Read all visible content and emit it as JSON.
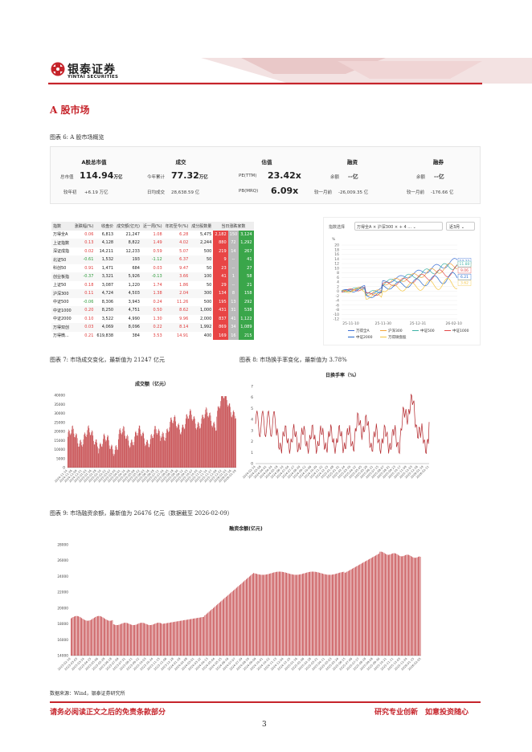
{
  "brand": {
    "cn": "银泰证券",
    "en": "YINTAI SECURITIES"
  },
  "section_title": "A 股市场",
  "fig6_caption": "图表 6: A 股市场概览",
  "overview": {
    "col1": {
      "title": "A股总市值",
      "l1": "总市值",
      "v1": "114.94",
      "u1": "万亿",
      "l2": "较年初",
      "v2": "+6.19 万亿"
    },
    "col2": {
      "title": "成交",
      "l1": "今年累计",
      "v1": "77.32",
      "u1": "万亿",
      "l2": "日均成交",
      "v2": "28,638.59 亿"
    },
    "col3": {
      "title": "估值",
      "l1": "PE(TTM)",
      "v1": "23.42x",
      "l2": "PB(MRQ)",
      "v2": "6.09x"
    },
    "col4": {
      "title": "融资",
      "l1": "余额",
      "v1": "--亿",
      "l2": "较一月前",
      "v2": "-26,009.35 亿"
    },
    "col5": {
      "title": "融券",
      "l1": "余额",
      "v1": "--亿",
      "l2": "较一月前",
      "v2": "-176.66 亿"
    }
  },
  "index_table": {
    "headers": [
      "指数",
      "涨跌幅(%)",
      "收盘价",
      "成交额(亿元)",
      "近一周(%)",
      "年初至今(%)",
      "成分股数量",
      "当日涨跌家数"
    ],
    "rows": [
      [
        "万得全A",
        "0.06",
        "6,813",
        "21,247",
        "1.08",
        "6.28",
        "5,475",
        "2,182",
        "150",
        "3,124"
      ],
      [
        "上证指数",
        "0.13",
        "4,128",
        "8,822",
        "1.49",
        "4.02",
        "2,244",
        "880",
        "72",
        "1,292"
      ],
      [
        "深证成指",
        "0.02",
        "14,211",
        "12,233",
        "0.59",
        "5.07",
        "500",
        "219",
        "14",
        "267"
      ],
      [
        "北证50",
        "-0.61",
        "1,532",
        "193",
        "-1.12",
        "6.37",
        "50",
        "9",
        "--",
        "41"
      ],
      [
        "科创50",
        "0.91",
        "1,471",
        "684",
        "0.03",
        "9.47",
        "50",
        "23",
        "--",
        "27"
      ],
      [
        "创业板指",
        "-0.37",
        "3,321",
        "5,926",
        "-0.13",
        "3.66",
        "100",
        "41",
        "1",
        "58"
      ],
      [
        "上证50",
        "0.18",
        "3,087",
        "1,220",
        "1.74",
        "1.86",
        "50",
        "29",
        "--",
        "21"
      ],
      [
        "沪深300",
        "0.11",
        "4,724",
        "4,503",
        "1.38",
        "2.04",
        "300",
        "134",
        "8",
        "158"
      ],
      [
        "中证500",
        "-0.06",
        "8,306",
        "3,943",
        "0.24",
        "11.26",
        "500",
        "195",
        "13",
        "292"
      ],
      [
        "中证1000",
        "0.20",
        "8,250",
        "4,751",
        "0.50",
        "8.62",
        "1,000",
        "431",
        "31",
        "538"
      ],
      [
        "中证2000",
        "0.10",
        "3,522",
        "4,990",
        "1.30",
        "9.96",
        "2,000",
        "837",
        "41",
        "1,122"
      ],
      [
        "万得双创",
        "0.03",
        "4,069",
        "8,096",
        "0.22",
        "8.14",
        "1,992",
        "869",
        "34",
        "1,089"
      ],
      [
        "万得微...",
        "0.21",
        "619,838",
        "384",
        "3.53",
        "14.91",
        "400",
        "169",
        "16",
        "215"
      ]
    ]
  },
  "compare_chart": {
    "select_label": "指数选择",
    "tags": [
      "万得全A ×",
      "沪深300 ×",
      "+ 4 ..."
    ],
    "range": "近3月",
    "yunit": "%",
    "yticks": [
      "20",
      "18",
      "16",
      "14",
      "12",
      "10",
      "8",
      "6",
      "4",
      "2",
      "0",
      "-2",
      "-4",
      "-6",
      "-8",
      "-10",
      "-12"
    ],
    "xticks": [
      "25-11-10",
      "25-11-30",
      "25-12-31",
      "26-02-10"
    ],
    "end_labels": [
      "13.11",
      "11.34",
      "11.80",
      "9.06",
      "6.21",
      "3.62"
    ],
    "legend": [
      "万得全A",
      "沪深300",
      "中证500",
      "中证1000",
      "中证2000",
      "万得微盘股"
    ],
    "colors": [
      "#3b6fd6",
      "#f2a33a",
      "#3fb3a6",
      "#e34a4a",
      "#2266cc",
      "#f4c542"
    ]
  },
  "fig7_caption": "图表 7: 市场成交变化，最新值为 21247 亿元",
  "fig8_caption": "图表 8: 市场换手率变化，最新值为 3.78%",
  "fig9_caption": "图表 9: 市场融资余额，最新值为 26476 亿元（数据截至 2026-02-09）",
  "chart_data": [
    {
      "type": "bar",
      "title": "成交额（亿元）",
      "ylim": [
        0,
        40000
      ],
      "yticks": [
        "40000",
        "35000",
        "30000",
        "25000",
        "20000",
        "15000",
        "10000",
        "5000",
        "0"
      ],
      "x_range": [
        "2024-11-14",
        "2026-02-10"
      ],
      "last_value": 21247
    },
    {
      "type": "line",
      "title": "日换手率（%）",
      "ylim": [
        0,
        7
      ],
      "yticks": [
        "7",
        "6",
        "5",
        "4",
        "3",
        "2",
        "1",
        "0"
      ],
      "x_range": [
        "2024-02-14",
        "2026-02-10"
      ],
      "last_value": 3.78
    },
    {
      "type": "bar",
      "title": "融资余额(亿元)",
      "ylim": [
        14000,
        28000
      ],
      "yticks": [
        "28000",
        "26000",
        "24000",
        "22000",
        "20000",
        "18000",
        "16000",
        "14000"
      ],
      "x_range": [
        "2023-02-10",
        "2026-02-09"
      ],
      "last_value": 26476
    }
  ],
  "source": "数据来源：Wind，银泰证券研究所",
  "footer": {
    "left": "请务必阅读正文之后的免责条款部分",
    "right": "研究专业创新　如意投资随心",
    "page": "3"
  }
}
